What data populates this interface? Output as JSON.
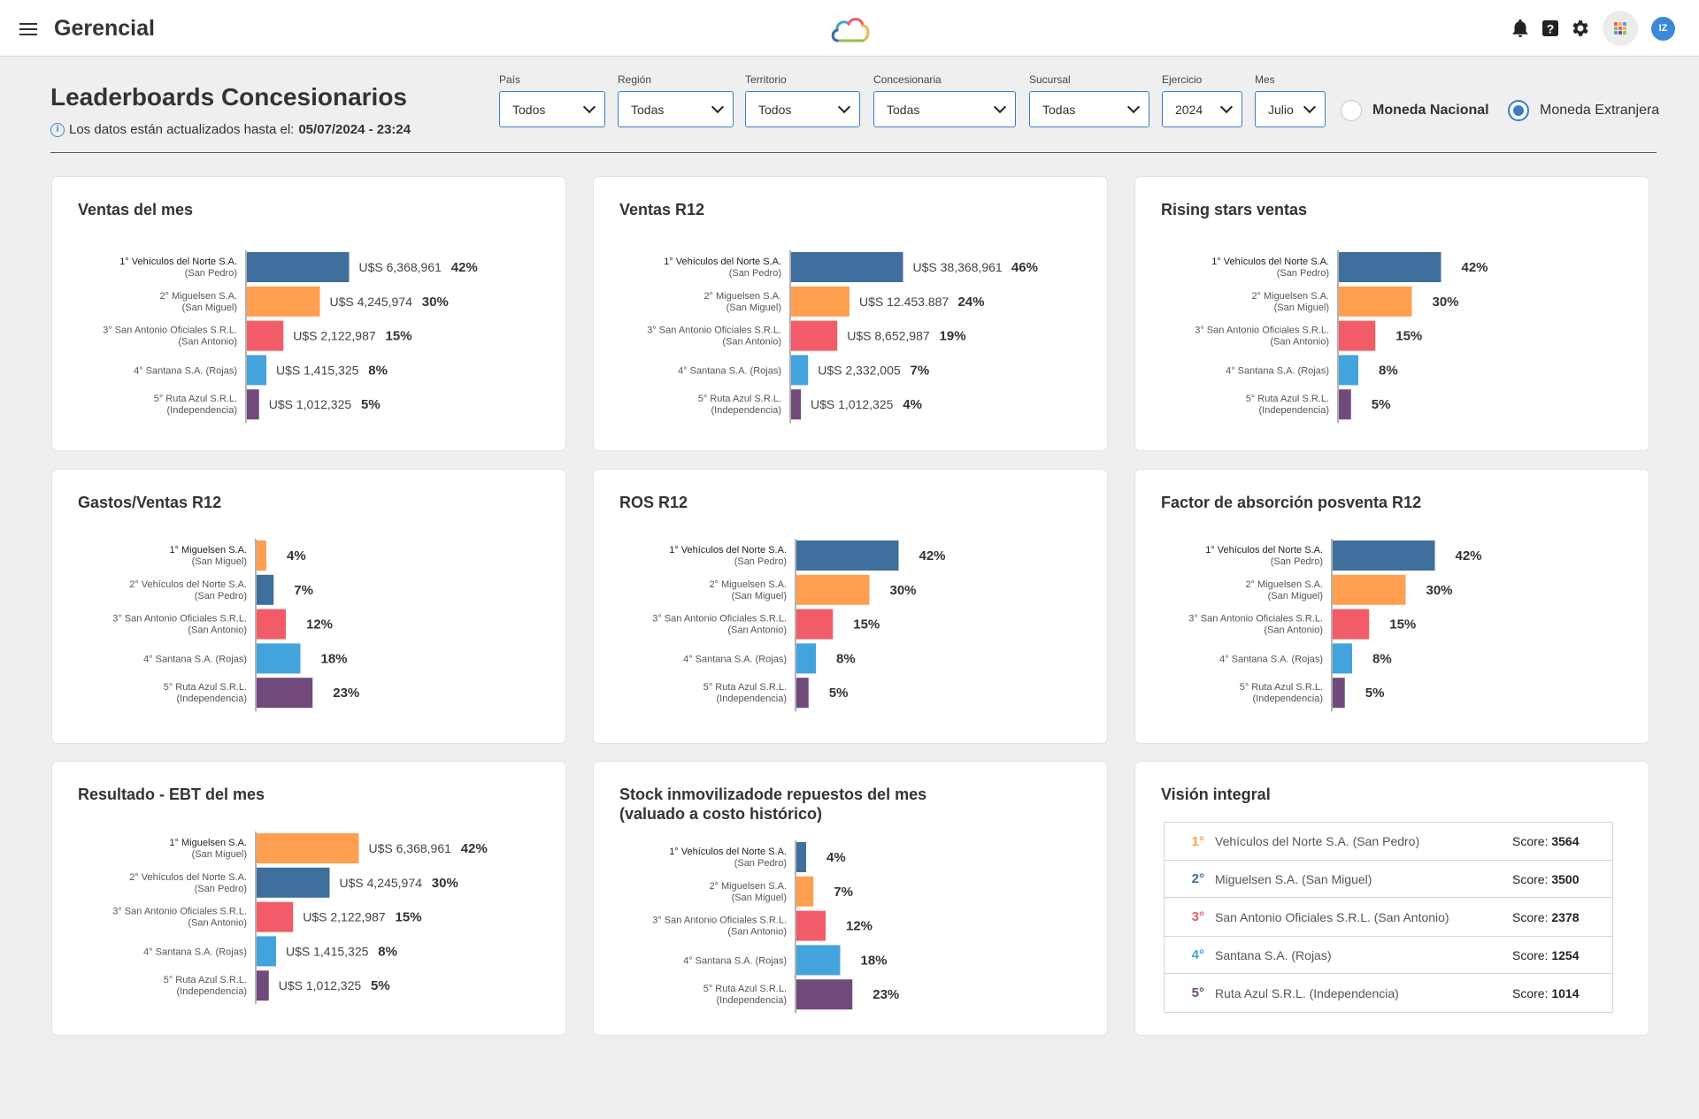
{
  "app": {
    "title": "Gerencial",
    "avatar_initials": "IZ"
  },
  "page": {
    "title": "Leaderboards Concesionarios",
    "updated_prefix": "Los datos están actualizados hasta el:",
    "updated_value": "05/07/2024 - 23:24"
  },
  "filters": [
    {
      "label": "País",
      "value": "Todos"
    },
    {
      "label": "Región",
      "value": "Todas"
    },
    {
      "label": "Territorio",
      "value": "Todos"
    },
    {
      "label": "Concesionaria",
      "value": "Todas"
    },
    {
      "label": "Sucursal",
      "value": "Todas"
    },
    {
      "label": "Ejercicio",
      "value": "2024"
    },
    {
      "label": "Mes",
      "value": "Julio"
    }
  ],
  "currency": [
    {
      "label": "Moneda Nacional",
      "selected": false
    },
    {
      "label": "Moneda Extranjera",
      "selected": true
    }
  ],
  "colors": {
    "rank1": "#3f6f9c",
    "rank2": "#ff9f4f",
    "rank3": "#f25c68",
    "rank4": "#43a3dd",
    "rank5": "#6f4a7b",
    "accent": "#3b7dc8"
  },
  "chart_data": [
    {
      "type": "bar",
      "title": "Ventas del mes",
      "categories": [
        [
          "1° Vehículos del Norte S.A.",
          "(San Pedro)"
        ],
        [
          "2° Miguelsen S.A.",
          "(San Miguel)"
        ],
        [
          "3° San Antonio Oficiales S.R.L.",
          "(San Antonio)"
        ],
        [
          "4° Santana S.A. (Rojas)"
        ],
        [
          "5° Ruta Azul S.R.L.",
          "(Independencia)"
        ]
      ],
      "values": [
        42,
        30,
        15,
        8,
        5
      ],
      "amounts": [
        "U$S 6,368,961",
        "U$S 4,245,974",
        "U$S 2,122,987",
        "U$S 1,415,325",
        "U$S 1,012,325"
      ],
      "percent_labels": [
        "42%",
        "30%",
        "15%",
        "8%",
        "5%"
      ],
      "color_keys": [
        "rank1",
        "rank2",
        "rank3",
        "rank4",
        "rank5"
      ]
    },
    {
      "type": "bar",
      "title": "Ventas R12",
      "categories": [
        [
          "1° Vehículos del Norte S.A.",
          "(San Pedro)"
        ],
        [
          "2° Miguelsen S.A.",
          "(San Miguel)"
        ],
        [
          "3° San Antonio Oficiales S.R.L.",
          "(San Antonio)"
        ],
        [
          "4° Santana S.A. (Rojas)"
        ],
        [
          "5° Ruta Azul S.R.L.",
          "(Independencia)"
        ]
      ],
      "values": [
        46,
        24,
        19,
        7,
        4
      ],
      "amounts": [
        "U$S 38,368,961",
        "U$S 12.453.887",
        "U$S 8,652,987",
        "U$S 2,332,005",
        "U$S 1,012,325"
      ],
      "percent_labels": [
        "46%",
        "24%",
        "19%",
        "7%",
        "4%"
      ],
      "color_keys": [
        "rank1",
        "rank2",
        "rank3",
        "rank4",
        "rank5"
      ]
    },
    {
      "type": "bar",
      "title": "Rising stars ventas",
      "categories": [
        [
          "1° Vehículos del Norte S.A.",
          "(San Pedro)"
        ],
        [
          "2° Miguelsen S.A.",
          "(San Miguel)"
        ],
        [
          "3° San Antonio Oficiales S.R.L.",
          "(San Antonio)"
        ],
        [
          "4° Santana S.A. (Rojas)"
        ],
        [
          "5° Ruta Azul S.R.L.",
          "(Independencia)"
        ]
      ],
      "values": [
        42,
        30,
        15,
        8,
        5
      ],
      "amounts": [],
      "percent_labels": [
        "42%",
        "30%",
        "15%",
        "8%",
        "5%"
      ],
      "color_keys": [
        "rank1",
        "rank2",
        "rank3",
        "rank4",
        "rank5"
      ]
    },
    {
      "type": "bar",
      "title": "Gastos/Ventas R12",
      "categories": [
        [
          "1° Miguelsen S.A.",
          "(San Miguel)"
        ],
        [
          "2° Vehículos del Norte S.A.",
          "(San Pedro)"
        ],
        [
          "3° San Antonio Oficiales S.R.L.",
          "(San Antonio)"
        ],
        [
          "4° Santana S.A. (Rojas)"
        ],
        [
          "5° Ruta Azul S.R.L.",
          "(Independencia)"
        ]
      ],
      "values": [
        4,
        7,
        12,
        18,
        23
      ],
      "amounts": [],
      "percent_labels": [
        "4%",
        "7%",
        "12%",
        "18%",
        "23%"
      ],
      "color_keys": [
        "rank2",
        "rank1",
        "rank3",
        "rank4",
        "rank5"
      ]
    },
    {
      "type": "bar",
      "title": "ROS R12",
      "categories": [
        [
          "1° Vehículos del Norte S.A.",
          "(San Pedro)"
        ],
        [
          "2° Miguelsen S.A.",
          "(San Miguel)"
        ],
        [
          "3° San Antonio Oficiales S.R.L.",
          "(San Antonio)"
        ],
        [
          "4° Santana S.A. (Rojas)"
        ],
        [
          "5° Ruta Azul S.R.L.",
          "(Independencia)"
        ]
      ],
      "values": [
        42,
        30,
        15,
        8,
        5
      ],
      "amounts": [],
      "percent_labels": [
        "42%",
        "30%",
        "15%",
        "8%",
        "5%"
      ],
      "color_keys": [
        "rank1",
        "rank2",
        "rank3",
        "rank4",
        "rank5"
      ]
    },
    {
      "type": "bar",
      "title": "Factor de absorción posventa R12",
      "categories": [
        [
          "1° Vehículos del Norte S.A.",
          "(San Pedro)"
        ],
        [
          "2° Miguelsen S.A.",
          "(San Miguel)"
        ],
        [
          "3° San Antonio Oficiales S.R.L.",
          "(San Antonio)"
        ],
        [
          "4° Santana S.A. (Rojas)"
        ],
        [
          "5° Ruta Azul S.R.L.",
          "(Independencia)"
        ]
      ],
      "values": [
        42,
        30,
        15,
        8,
        5
      ],
      "amounts": [],
      "percent_labels": [
        "42%",
        "30%",
        "15%",
        "8%",
        "5%"
      ],
      "color_keys": [
        "rank1",
        "rank2",
        "rank3",
        "rank4",
        "rank5"
      ]
    },
    {
      "type": "bar",
      "title": "Resultado - EBT del mes",
      "categories": [
        [
          "1° Miguelsen S.A.",
          "(San Miguel)"
        ],
        [
          "2° Vehículos del Norte S.A.",
          "(San Pedro)"
        ],
        [
          "3° San Antonio Oficiales S.R.L.",
          "(San Antonio)"
        ],
        [
          "4° Santana S.A. (Rojas)"
        ],
        [
          "5° Ruta Azul S.R.L.",
          "(Independencia)"
        ]
      ],
      "values": [
        42,
        30,
        15,
        8,
        5
      ],
      "amounts": [
        "U$S 6,368,961",
        "U$S 4,245,974",
        "U$S 2,122,987",
        "U$S 1,415,325",
        "U$S 1,012,325"
      ],
      "percent_labels": [
        "42%",
        "30%",
        "15%",
        "8%",
        "5%"
      ],
      "color_keys": [
        "rank2",
        "rank1",
        "rank3",
        "rank4",
        "rank5"
      ]
    },
    {
      "type": "bar",
      "title": "Stock inmovilizadode repuestos del mes\n(valuado a costo histórico)",
      "categories": [
        [
          "1° Vehículos del Norte S.A.",
          "(San Pedro)"
        ],
        [
          "2° Miguelsen S.A.",
          "(San Miguel)"
        ],
        [
          "3° San Antonio Oficiales S.R.L.",
          "(San Antonio)"
        ],
        [
          "4° Santana S.A. (Rojas)"
        ],
        [
          "5° Ruta Azul S.R.L.",
          "(Independencia)"
        ]
      ],
      "values": [
        4,
        7,
        12,
        18,
        23
      ],
      "amounts": [],
      "percent_labels": [
        "4%",
        "7%",
        "12%",
        "18%",
        "23%"
      ],
      "color_keys": [
        "rank1",
        "rank2",
        "rank3",
        "rank4",
        "rank5"
      ]
    }
  ],
  "vision": {
    "title": "Visión integral",
    "rows": [
      {
        "rank": "1°",
        "name": "Vehículos del Norte S.A. (San Pedro)",
        "score_label": "Score:",
        "score": "3564",
        "color": "#ff9f4f"
      },
      {
        "rank": "2°",
        "name": "Miguelsen S.A. (San Miguel)",
        "score_label": "Score:",
        "score": "3500",
        "color": "#3f6f9c"
      },
      {
        "rank": "3°",
        "name": "San Antonio Oficiales S.R.L. (San Antonio)",
        "score_label": "Score:",
        "score": "2378",
        "color": "#f25c68"
      },
      {
        "rank": "4°",
        "name": "Santana S.A. (Rojas)",
        "score_label": "Score:",
        "score": "1254",
        "color": "#43a3dd"
      },
      {
        "rank": "5°",
        "name": "Ruta Azul S.R.L. (Independencia)",
        "score_label": "Score:",
        "score": "1014",
        "color": "#6f4a7b"
      }
    ]
  }
}
